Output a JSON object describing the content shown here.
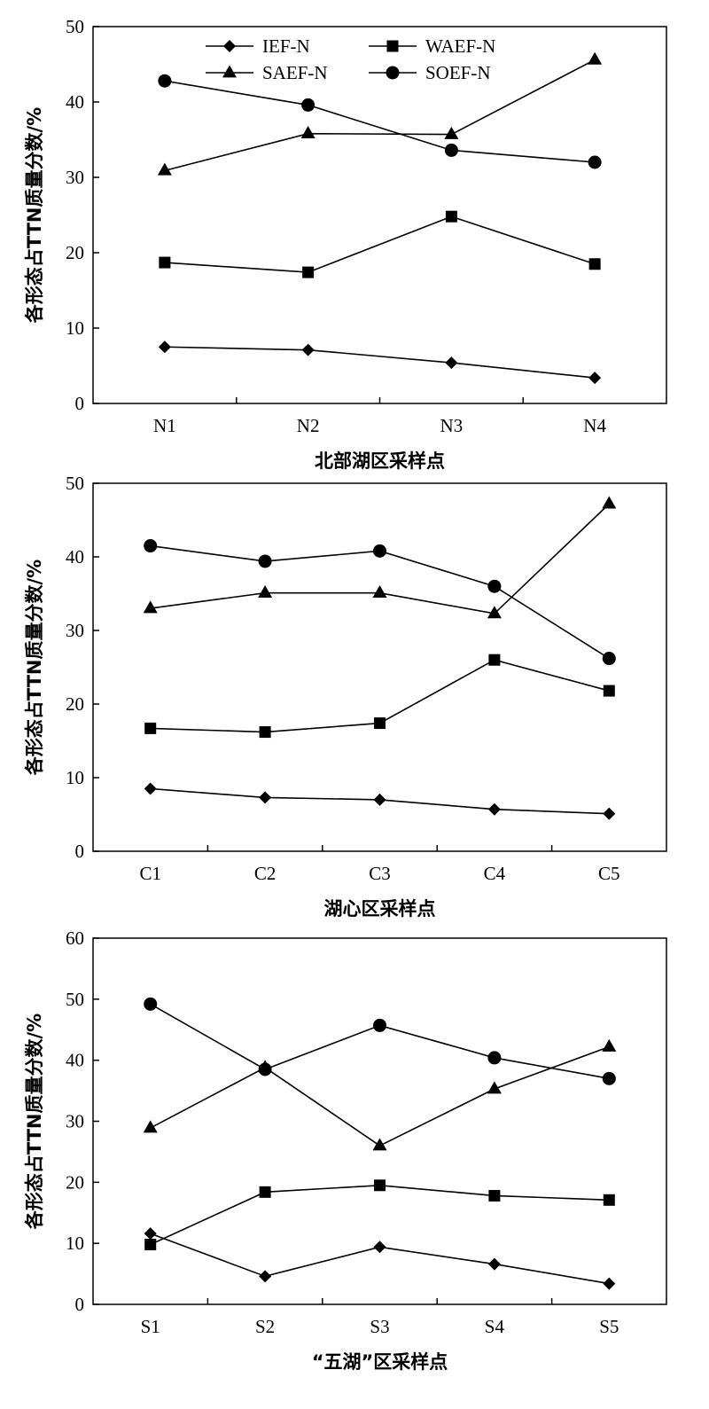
{
  "chart_data": [
    {
      "type": "line",
      "xlabel": "北部湖区采样点",
      "ylabel": "各形态占TTN质量分数/%",
      "categories": [
        "N1",
        "N2",
        "N3",
        "N4"
      ],
      "ylim": [
        0,
        50
      ],
      "yticks": [
        0,
        10,
        20,
        30,
        40,
        50
      ],
      "grid": false,
      "legend_position": "top",
      "series": [
        {
          "name": "IEF-N",
          "marker": "diamond",
          "values": [
            7.5,
            7.1,
            5.4,
            3.4
          ]
        },
        {
          "name": "WAEF-N",
          "marker": "square",
          "values": [
            18.7,
            17.4,
            24.8,
            18.5
          ]
        },
        {
          "name": "SAEF-N",
          "marker": "triangle",
          "values": [
            30.9,
            35.8,
            35.7,
            45.6
          ]
        },
        {
          "name": "SOEF-N",
          "marker": "circle",
          "values": [
            42.8,
            39.6,
            33.6,
            32.0
          ]
        }
      ]
    },
    {
      "type": "line",
      "xlabel": "湖心区采样点",
      "ylabel": "各形态占TTN质量分数/%",
      "categories": [
        "C1",
        "C2",
        "C3",
        "C4",
        "C5"
      ],
      "ylim": [
        0,
        50
      ],
      "yticks": [
        0,
        10,
        20,
        30,
        40,
        50
      ],
      "grid": false,
      "series": [
        {
          "name": "IEF-N",
          "marker": "diamond",
          "values": [
            8.5,
            7.3,
            7.0,
            5.7,
            5.1
          ]
        },
        {
          "name": "WAEF-N",
          "marker": "square",
          "values": [
            16.7,
            16.2,
            17.4,
            26.0,
            21.8
          ]
        },
        {
          "name": "SAEF-N",
          "marker": "triangle",
          "values": [
            33.0,
            35.1,
            35.1,
            32.3,
            47.2
          ]
        },
        {
          "name": "SOEF-N",
          "marker": "circle",
          "values": [
            41.5,
            39.4,
            40.8,
            36.0,
            26.2
          ]
        }
      ]
    },
    {
      "type": "line",
      "xlabel": "“五湖”区采样点",
      "ylabel": "各形态占TTN质量分数/%",
      "categories": [
        "S1",
        "S2",
        "S3",
        "S4",
        "S5"
      ],
      "ylim": [
        0,
        60
      ],
      "yticks": [
        0,
        10,
        20,
        30,
        40,
        50,
        60
      ],
      "grid": false,
      "series": [
        {
          "name": "IEF-N",
          "marker": "diamond",
          "values": [
            11.6,
            4.6,
            9.4,
            6.6,
            3.4
          ]
        },
        {
          "name": "WAEF-N",
          "marker": "square",
          "values": [
            9.8,
            18.4,
            19.5,
            17.8,
            17.1
          ]
        },
        {
          "name": "SAEF-N",
          "marker": "triangle",
          "values": [
            28.9,
            38.8,
            26.0,
            35.3,
            42.2
          ]
        },
        {
          "name": "SOEF-N",
          "marker": "circle",
          "values": [
            49.2,
            38.5,
            45.7,
            40.4,
            37.0
          ]
        }
      ]
    }
  ]
}
